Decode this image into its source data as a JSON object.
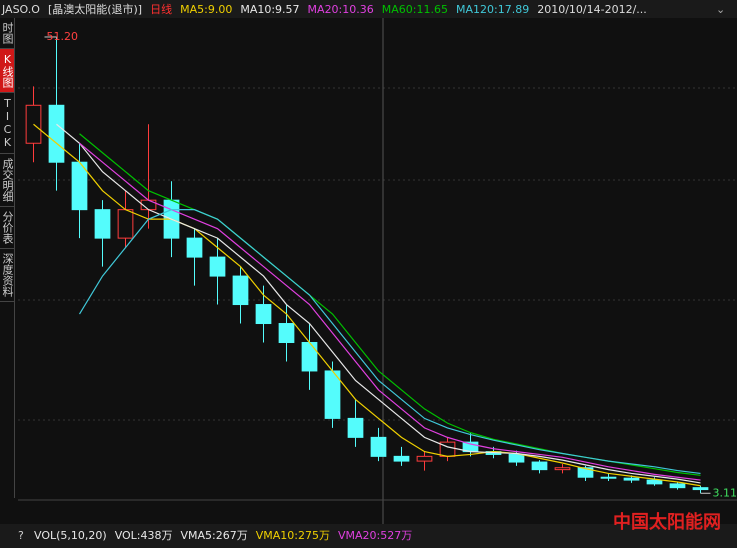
{
  "chart_data": {
    "type": "candlestick",
    "symbol": "JASO.O",
    "name": "[晶澳太阳能(退市)]",
    "period": "日线",
    "date_range": "2010/10/14-2012/...",
    "categories": [
      null,
      null,
      null,
      null,
      null,
      null,
      null,
      null,
      null,
      null,
      null,
      null,
      null,
      null,
      null,
      null,
      null,
      null,
      null,
      null,
      null,
      null,
      null,
      null,
      null,
      null,
      null,
      null,
      null,
      null
    ],
    "open": [
      40,
      44,
      38,
      33,
      30,
      33,
      34,
      30,
      28,
      26,
      23,
      21,
      19,
      16,
      11,
      9,
      7,
      6.5,
      7,
      8.5,
      7.5,
      7.2,
      6.4,
      5.6,
      5.8,
      4.8,
      4.7,
      4.5,
      4.1,
      3.7
    ],
    "high": [
      46,
      51.2,
      40,
      34,
      35,
      42,
      36,
      31,
      30,
      27,
      25,
      23,
      21,
      17,
      13,
      10,
      8,
      7.5,
      9,
      9.5,
      8,
      7.6,
      6.6,
      6.2,
      6,
      5.2,
      5,
      4.8,
      4.3,
      3.9
    ],
    "low": [
      38,
      35,
      30,
      27,
      29,
      31,
      28,
      25,
      23,
      21,
      19,
      17,
      14,
      10,
      8,
      6.5,
      6,
      5.5,
      6.5,
      7,
      6.8,
      6,
      5.2,
      5.2,
      4.4,
      4.4,
      4.2,
      3.9,
      3.5,
      3.11
    ],
    "close": [
      44,
      38,
      33,
      30,
      33,
      34,
      30,
      28,
      26,
      23,
      21,
      19,
      16,
      11,
      9,
      7,
      6.5,
      7,
      8.5,
      7.5,
      7.2,
      6.4,
      5.6,
      5.8,
      4.8,
      4.7,
      4.5,
      4.1,
      3.7,
      3.5
    ],
    "up_color": "#ff3c3c",
    "down_color": "#54fcfc",
    "series": [
      {
        "name": "MA5:9.00",
        "color": "#f0d000",
        "values": [
          42,
          40,
          38,
          35,
          33,
          32,
          32,
          31,
          29,
          27,
          24,
          22,
          19,
          16,
          13,
          11,
          9,
          7.5,
          7,
          7.2,
          7.5,
          7.3,
          6.8,
          6.3,
          5.7,
          5.2,
          4.9,
          4.6,
          4.3,
          3.9
        ]
      },
      {
        "name": "MA10:9.57",
        "color": "#e8e8e8",
        "values": [
          null,
          42,
          40,
          37,
          35,
          33,
          32,
          31,
          30,
          28,
          26,
          23,
          21,
          18,
          15,
          13,
          11,
          9,
          8,
          7.5,
          7.4,
          7.3,
          7,
          6.6,
          6.1,
          5.6,
          5.2,
          4.9,
          4.6,
          4.2
        ]
      },
      {
        "name": "MA20:10.36",
        "color": "#e040e0",
        "values": [
          null,
          null,
          40,
          38,
          36,
          34,
          33,
          32,
          31,
          29,
          27,
          25,
          23,
          20,
          17,
          14,
          12,
          10,
          9,
          8.3,
          7.8,
          7.5,
          7.2,
          6.9,
          6.4,
          5.9,
          5.5,
          5.1,
          4.8,
          4.5
        ]
      },
      {
        "name": "MA60:11.65",
        "color": "#00c000",
        "values": [
          null,
          null,
          41,
          39,
          37,
          35,
          34,
          33,
          32,
          30,
          28,
          26,
          24,
          22,
          19,
          16,
          14,
          12,
          10.5,
          9.5,
          8.8,
          8.3,
          7.8,
          7.3,
          6.9,
          6.5,
          6.1,
          5.7,
          5.3,
          5
        ]
      },
      {
        "name": "MA120:17.89",
        "color": "#40c8d8",
        "values": [
          null,
          null,
          22,
          26,
          29,
          32,
          33,
          33,
          32,
          30,
          28,
          26,
          24,
          21,
          18,
          15,
          13,
          11,
          10,
          9.3,
          8.7,
          8.2,
          7.7,
          7.3,
          6.9,
          6.5,
          6.2,
          5.9,
          5.5,
          5.2
        ]
      }
    ],
    "ylim": [
      2.4,
      53.2
    ],
    "annotations": [
      {
        "value": 51.2,
        "label": "51.20"
      },
      {
        "value": 3.11,
        "label": "3.11"
      }
    ],
    "volume_legend": [
      {
        "text": "VOL(5,10,20)",
        "color": "#e8e8e8"
      },
      {
        "text": "VOL:438万",
        "color": "#e8e8e8"
      },
      {
        "text": "VMA5:267万",
        "color": "#e8e8e8"
      },
      {
        "text": "VMA10:275万",
        "color": "#f0d000"
      },
      {
        "text": "VMA20:527万",
        "color": "#e040e0"
      }
    ]
  },
  "sidebar_tabs": [
    "时图",
    "K线图",
    "TICK",
    "成交明细",
    "分价表",
    "深度资料"
  ],
  "watermark": "中国太阳能网"
}
